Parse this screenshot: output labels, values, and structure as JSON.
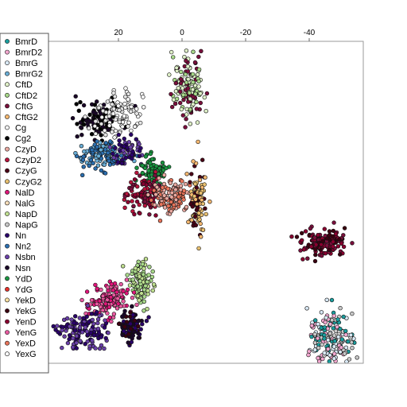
{
  "chart_data": {
    "type": "scatter",
    "title": "",
    "xlabel": "",
    "ylabel": "",
    "x_axis": {
      "reversed": true,
      "ticks": [
        20,
        0,
        -20,
        -40
      ],
      "tick_labels": [
        "20",
        "0",
        "-20",
        "-40"
      ],
      "range": [
        42,
        -57
      ]
    },
    "y_range": [
      -45,
      45
    ],
    "grid": false,
    "legend_position": "left",
    "legend": [
      {
        "name": "BmrD",
        "color": "#1b9e9e"
      },
      {
        "name": "BmrD2",
        "color": "#f2a7cf"
      },
      {
        "name": "BmrG",
        "color": "#d8e8f4"
      },
      {
        "name": "BmrG2",
        "color": "#6aaed6"
      },
      {
        "name": "CftD",
        "color": "#dff0c8"
      },
      {
        "name": "CftD2",
        "color": "#a8d98a"
      },
      {
        "name": "CftG",
        "color": "#7a0f3c"
      },
      {
        "name": "CftG2",
        "color": "#f5b870"
      },
      {
        "name": "Cg",
        "color": "#f4f4f4"
      },
      {
        "name": "Cg2",
        "color": "#000000"
      },
      {
        "name": "CzyD",
        "color": "#e8a8a0"
      },
      {
        "name": "CzyD2",
        "color": "#b8143c"
      },
      {
        "name": "CzyG",
        "color": "#4a0016"
      },
      {
        "name": "CzyG2",
        "color": "#e8c070"
      },
      {
        "name": "NalD",
        "color": "#e0157a"
      },
      {
        "name": "NalG",
        "color": "#f6dcb8"
      },
      {
        "name": "NapD",
        "color": "#c0e090"
      },
      {
        "name": "NapG",
        "color": "#c8c8c8"
      },
      {
        "name": "Nn",
        "color": "#2a006a"
      },
      {
        "name": "Nn2",
        "color": "#2b6fb0"
      },
      {
        "name": "Nsbn",
        "color": "#6a40a8"
      },
      {
        "name": "Nsn",
        "color": "#1a0628"
      },
      {
        "name": "YdD",
        "color": "#1a9641"
      },
      {
        "name": "YdG",
        "color": "#e8302a"
      },
      {
        "name": "YekD",
        "color": "#f8dfa0"
      },
      {
        "name": "YekG",
        "color": "#3a0010"
      },
      {
        "name": "YenD",
        "color": "#8a0030"
      },
      {
        "name": "YenG",
        "color": "#e85aa0"
      },
      {
        "name": "YexD",
        "color": "#e8745a"
      },
      {
        "name": "YexG",
        "color": "#fafafa"
      }
    ],
    "clusters": [
      {
        "name": "CftG/CftD2 mix",
        "center": [
          -2,
          32
        ],
        "spread": [
          2.5,
          4.5
        ],
        "colors": [
          "#a8d98a",
          "#7a0f3c",
          "#dff0c8"
        ],
        "n": 150
      },
      {
        "name": "Cg2",
        "center": [
          27,
          23
        ],
        "spread": [
          3.5,
          2.5
        ],
        "colors": [
          "#000000",
          "#1a0628"
        ],
        "n": 95
      },
      {
        "name": "Cg",
        "center": [
          20,
          25
        ],
        "spread": [
          3.5,
          3
        ],
        "colors": [
          "#f4f4f4",
          "#e4e4e4"
        ],
        "n": 95
      },
      {
        "name": "Nn2",
        "center": [
          25,
          13.5
        ],
        "spread": [
          4,
          2
        ],
        "colors": [
          "#2b6fb0",
          "#6aaed6"
        ],
        "n": 130
      },
      {
        "name": "Nn",
        "center": [
          17,
          14.5
        ],
        "spread": [
          2.5,
          2
        ],
        "colors": [
          "#2a006a",
          "#6a40a8"
        ],
        "n": 70
      },
      {
        "name": "YdD",
        "center": [
          9.5,
          8.5
        ],
        "spread": [
          2.5,
          2
        ],
        "colors": [
          "#1a9641"
        ],
        "n": 90
      },
      {
        "name": "CzyD2/YenD",
        "center": [
          12,
          2.5
        ],
        "spread": [
          3,
          2.5
        ],
        "colors": [
          "#b8143c",
          "#8a0030",
          "#7a0f3c"
        ],
        "n": 110
      },
      {
        "name": "YexD",
        "center": [
          3.5,
          1.5
        ],
        "spread": [
          3,
          2.5
        ],
        "colors": [
          "#e8745a",
          "#e8a8a0"
        ],
        "n": 120
      },
      {
        "name": "CzyG2",
        "center": [
          -5,
          1
        ],
        "spread": [
          1.5,
          4.5
        ],
        "colors": [
          "#e8c070",
          "#f5b870",
          "#4a0016"
        ],
        "n": 110
      },
      {
        "name": "YekG",
        "center": [
          -45,
          -11
        ],
        "spread": [
          3.5,
          1.8
        ],
        "colors": [
          "#3a0010",
          "#7a0f3c",
          "#8a0030"
        ],
        "n": 150
      },
      {
        "name": "NapD",
        "center": [
          13,
          -22
        ],
        "spread": [
          2,
          3
        ],
        "colors": [
          "#c0e090",
          "#a8d98a"
        ],
        "n": 100
      },
      {
        "name": "NalD",
        "center": [
          23,
          -27
        ],
        "spread": [
          3.5,
          2.5
        ],
        "colors": [
          "#e0157a",
          "#e85aa0"
        ],
        "n": 140
      },
      {
        "name": "Nsbn",
        "center": [
          31,
          -36
        ],
        "spread": [
          4.5,
          2.8
        ],
        "colors": [
          "#6a40a8",
          "#2a006a"
        ],
        "n": 140
      },
      {
        "name": "Nsn",
        "center": [
          16,
          -35
        ],
        "spread": [
          2,
          2.2
        ],
        "colors": [
          "#1a0628",
          "#2a006a",
          "#3a0010"
        ],
        "n": 90
      },
      {
        "name": "BmrD/BmrG",
        "center": [
          -47,
          -39
        ],
        "spread": [
          3.5,
          4
        ],
        "colors": [
          "#f2a7cf",
          "#d8e8f4",
          "#1b9e9e",
          "#c8c8c8"
        ],
        "n": 190
      }
    ]
  }
}
